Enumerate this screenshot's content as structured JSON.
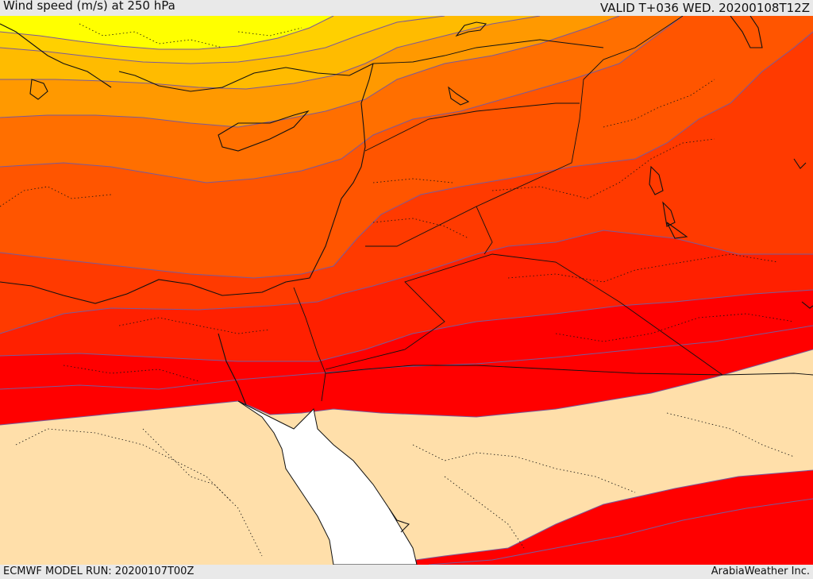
{
  "header": {
    "title": "Wind speed (m/s) at 250 hPa",
    "valid": "VALID T+036 WED. 20200108T12Z"
  },
  "footer": {
    "model_run": "ECMWF MODEL RUN: 20200107T00Z",
    "credit": "ArabiaWeather Inc."
  },
  "colors": {
    "band_1": "#ffff00",
    "band_2": "#ffd000",
    "band_3": "#ffbb00",
    "band_4": "#ff9900",
    "band_5": "#ff6f00",
    "band_6": "#ff5500",
    "band_7": "#ff3a00",
    "band_8": "#ff2000",
    "band_9": "#ff0000",
    "calm": "#ffdfaa",
    "sea": "#ffffff",
    "coast": "#111111",
    "contour": "#7a5a9a"
  }
}
